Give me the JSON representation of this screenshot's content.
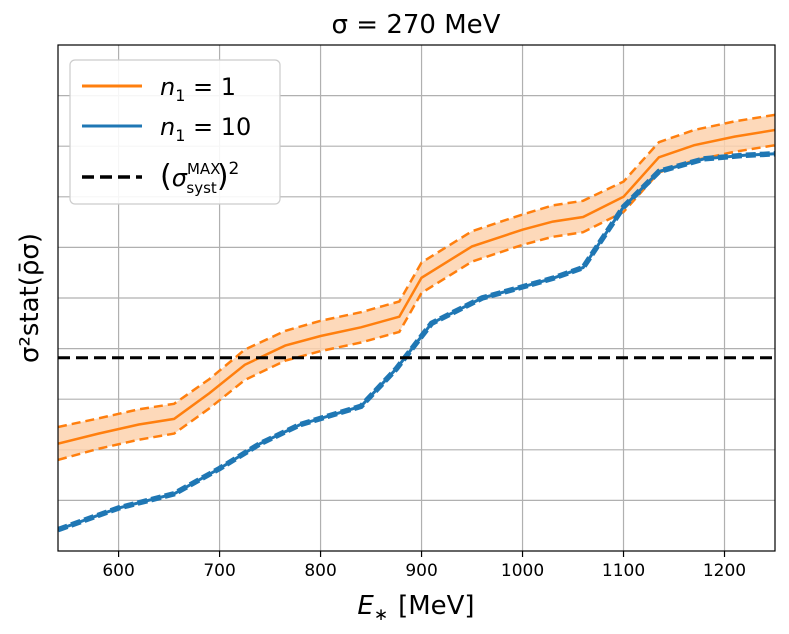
{
  "chart_data": {
    "type": "line",
    "title": "σ = 270 MeV",
    "xlabel": "E",
    "xlabel_subscript": "∗",
    "xlabel_unit": "[MeV]",
    "ylabel": "σ²stat(ρ̄σ)",
    "xlim": [
      540,
      1250
    ],
    "ylim": [
      0,
      10
    ],
    "x_ticks": [
      600,
      700,
      800,
      900,
      1000,
      1100,
      1200
    ],
    "x_tick_labels": [
      "600",
      "700",
      "800",
      "900",
      "1000",
      "1100",
      "1200"
    ],
    "y_gridlines": [
      1,
      2,
      3,
      4,
      5,
      6,
      7,
      8,
      9
    ],
    "y_tick_labels_shown": false,
    "grid": true,
    "legend_position": "top-left",
    "series": [
      {
        "name": "n1 = 1",
        "legend_main": "n",
        "legend_sub": "1",
        "legend_rest": " = 1",
        "color": "#ff7f0e",
        "band_color": "#fdd2ae",
        "x": [
          540,
          580,
          620,
          655,
          690,
          725,
          765,
          800,
          840,
          878,
          900,
          950,
          1000,
          1030,
          1060,
          1100,
          1135,
          1170,
          1210,
          1250
        ],
        "y": [
          2.12,
          2.32,
          2.5,
          2.61,
          3.12,
          3.68,
          4.06,
          4.25,
          4.42,
          4.63,
          5.4,
          6.02,
          6.35,
          6.51,
          6.6,
          7.0,
          7.78,
          8.02,
          8.19,
          8.32
        ],
        "y_upper": [
          2.45,
          2.62,
          2.8,
          2.91,
          3.4,
          3.98,
          4.35,
          4.55,
          4.72,
          4.93,
          5.7,
          6.32,
          6.65,
          6.83,
          6.92,
          7.3,
          8.08,
          8.32,
          8.49,
          8.62
        ],
        "y_lower": [
          1.8,
          2.02,
          2.2,
          2.32,
          2.82,
          3.38,
          3.76,
          3.95,
          4.12,
          4.33,
          5.1,
          5.72,
          6.05,
          6.21,
          6.3,
          6.7,
          7.48,
          7.72,
          7.89,
          8.02
        ]
      },
      {
        "name": "n1 = 10",
        "legend_main": "n",
        "legend_sub": "1",
        "legend_rest": " = 10",
        "color": "#1f77b4",
        "x": [
          540,
          600,
          655,
          700,
          740,
          780,
          840,
          875,
          910,
          960,
          1000,
          1030,
          1060,
          1100,
          1135,
          1180,
          1220,
          1250
        ],
        "y": [
          0.42,
          0.85,
          1.13,
          1.63,
          2.12,
          2.5,
          2.86,
          3.6,
          4.5,
          5.0,
          5.22,
          5.39,
          5.6,
          6.8,
          7.5,
          7.75,
          7.82,
          7.85
        ]
      },
      {
        "name": "(σMAX syst)²",
        "legend_sigma": "σ",
        "legend_sup": "MAX",
        "legend_sub": "syst",
        "legend_power": "2",
        "color": "#000000",
        "style": "dashed",
        "y_constant": 3.82
      }
    ]
  }
}
